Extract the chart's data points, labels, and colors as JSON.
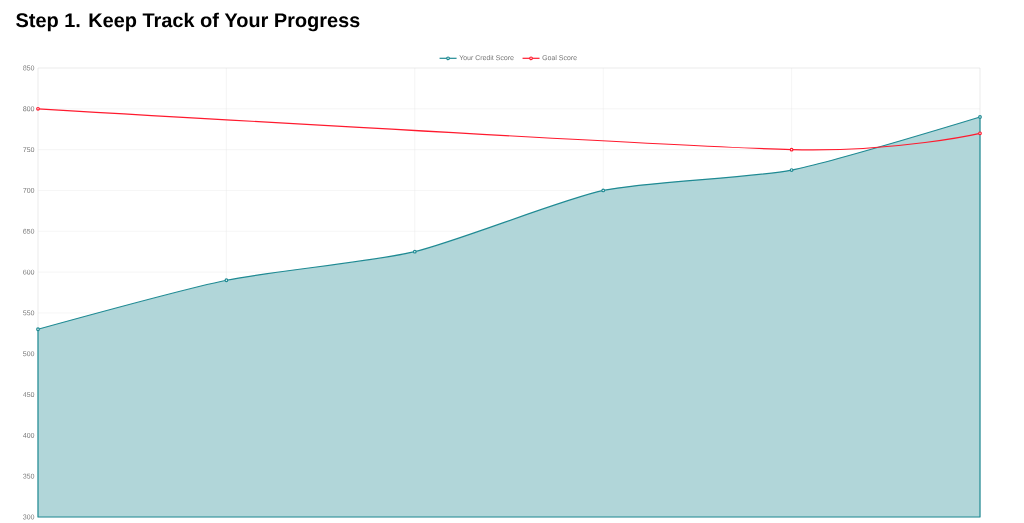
{
  "chart_data": {
    "type": "line",
    "title": "Step 1. Keep Track of Your Progress",
    "categories": [
      null,
      null,
      null,
      null,
      null,
      null
    ],
    "series": [
      {
        "name": "Your Credit Score",
        "type": "area",
        "color": "#1f8a93",
        "values": [
          530,
          590,
          625,
          700,
          725,
          790
        ]
      },
      {
        "name": "Goal Score",
        "type": "line",
        "color": "#ff1a2e",
        "values": [
          800,
          null,
          null,
          null,
          750,
          770
        ]
      }
    ],
    "ylim": [
      300,
      850
    ],
    "yticks": [
      300,
      350,
      400,
      450,
      500,
      550,
      600,
      650,
      700,
      750,
      800,
      850
    ],
    "grid": true,
    "legend": "top",
    "marker": "circle",
    "line_style": "solid",
    "tick_labels": "y"
  }
}
